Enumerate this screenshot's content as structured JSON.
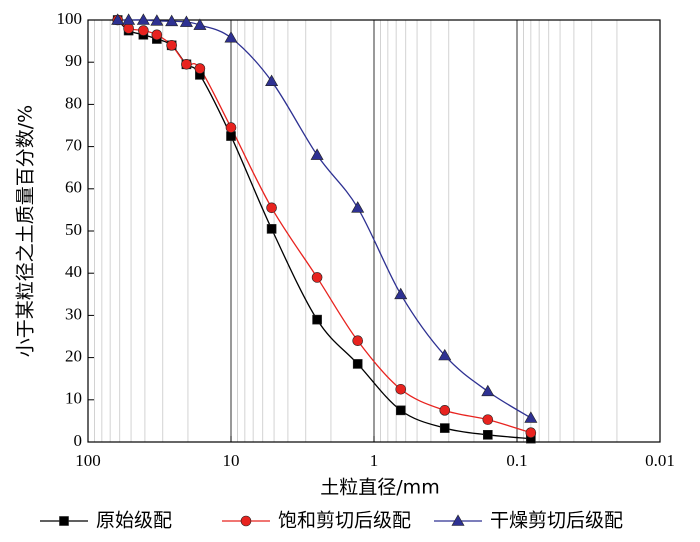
{
  "chart_data": {
    "type": "line",
    "x_label": "土粒直径/mm",
    "y_label": "小于某粒径之土质量百分数/%",
    "x": [
      62,
      52,
      41,
      33,
      26,
      20.5,
      16.5,
      10,
      5.2,
      2.5,
      1.3,
      0.65,
      0.32,
      0.16,
      0.08
    ],
    "series": [
      {
        "name": "原始级配",
        "color": "#000000",
        "marker": "square",
        "values": [
          100,
          97.5,
          96.5,
          95.5,
          94,
          89.5,
          87,
          72.5,
          50.5,
          29,
          18.5,
          7.5,
          3.3,
          1.7,
          0.8
        ]
      },
      {
        "name": "饱和剪切后级配",
        "color": "#e8231f",
        "marker": "circle",
        "values": [
          100,
          98,
          97.5,
          96.5,
          94,
          89.5,
          88.5,
          74.5,
          55.5,
          39,
          24,
          12.5,
          7.5,
          5.3,
          2.2
        ]
      },
      {
        "name": "干燥剪切后级配",
        "color": "#2e3192",
        "marker": "triangle",
        "values": [
          100,
          100,
          100,
          99.8,
          99.7,
          99.5,
          98.8,
          95.8,
          85.5,
          68,
          55.5,
          35,
          20.5,
          12,
          5.7
        ]
      }
    ],
    "xlim": [
      100,
      0.01
    ],
    "xticks": [
      100,
      10,
      1,
      0.1,
      0.01
    ],
    "x_log": true,
    "ylim": [
      0,
      100
    ],
    "yticks": [
      0,
      10,
      20,
      30,
      40,
      50,
      60,
      70,
      80,
      90,
      100
    ],
    "grid": true,
    "legend": "bottom"
  }
}
